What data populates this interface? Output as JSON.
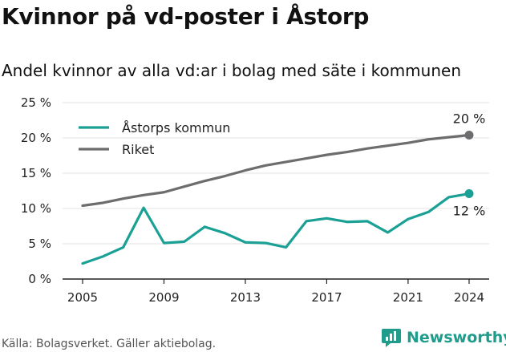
{
  "title": "Kvinnor på vd-poster i Åstorp",
  "subtitle": "Andel kvinnor av alla vd:ar i bolag med säte i kommunen",
  "source": "Källa: Bolagsverket. Gäller aktiebolag.",
  "brand": "Newsworthy",
  "colors": {
    "astorp": "#1aa094",
    "riket": "#6d6d6f",
    "grid": "#e3e3e3",
    "brand": "#1f9c8c"
  },
  "chart_data": {
    "type": "line",
    "x": [
      2005,
      2006,
      2007,
      2008,
      2009,
      2010,
      2011,
      2012,
      2013,
      2014,
      2015,
      2016,
      2017,
      2018,
      2019,
      2020,
      2021,
      2022,
      2023,
      2024
    ],
    "xticks": [
      "2005",
      "2009",
      "2013",
      "2017",
      "2021",
      "2024"
    ],
    "ylim": [
      0,
      25
    ],
    "yticks": [
      "0 %",
      "5 %",
      "10 %",
      "15 %",
      "20 %",
      "25 %"
    ],
    "grid": true,
    "legend_position": "top-left",
    "series": [
      {
        "name": "Åstorps kommun",
        "color": "#1aa094",
        "values": [
          2.2,
          3.2,
          4.5,
          10.1,
          5.1,
          5.3,
          7.4,
          6.5,
          5.2,
          5.1,
          4.5,
          8.2,
          8.6,
          8.1,
          8.2,
          6.6,
          8.5,
          9.5,
          11.6,
          12.1
        ],
        "end_label": "12 %"
      },
      {
        "name": "Riket",
        "color": "#6d6d6f",
        "values": [
          10.4,
          10.8,
          11.4,
          11.9,
          12.3,
          13.1,
          13.9,
          14.6,
          15.4,
          16.1,
          16.6,
          17.1,
          17.6,
          18.0,
          18.5,
          18.9,
          19.3,
          19.8,
          20.1,
          20.4
        ],
        "end_label": "20 %"
      }
    ]
  }
}
